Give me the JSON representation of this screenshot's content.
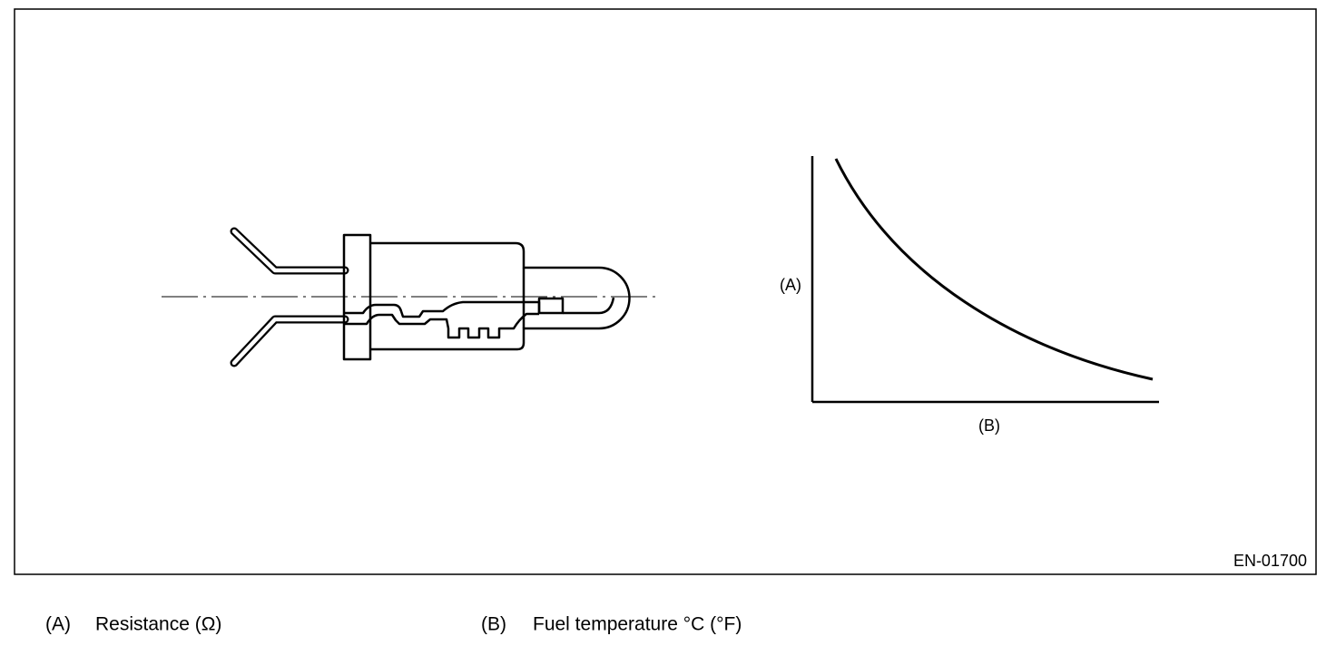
{
  "figure": {
    "axis_labels": {
      "y": "(A)",
      "x": "(B)"
    },
    "figure_id": "EN-01700"
  },
  "legend": [
    {
      "key": "(A)",
      "text": "Resistance (Ω)"
    },
    {
      "key": "(B)",
      "text": "Fuel temperature °C (°F)"
    }
  ]
}
